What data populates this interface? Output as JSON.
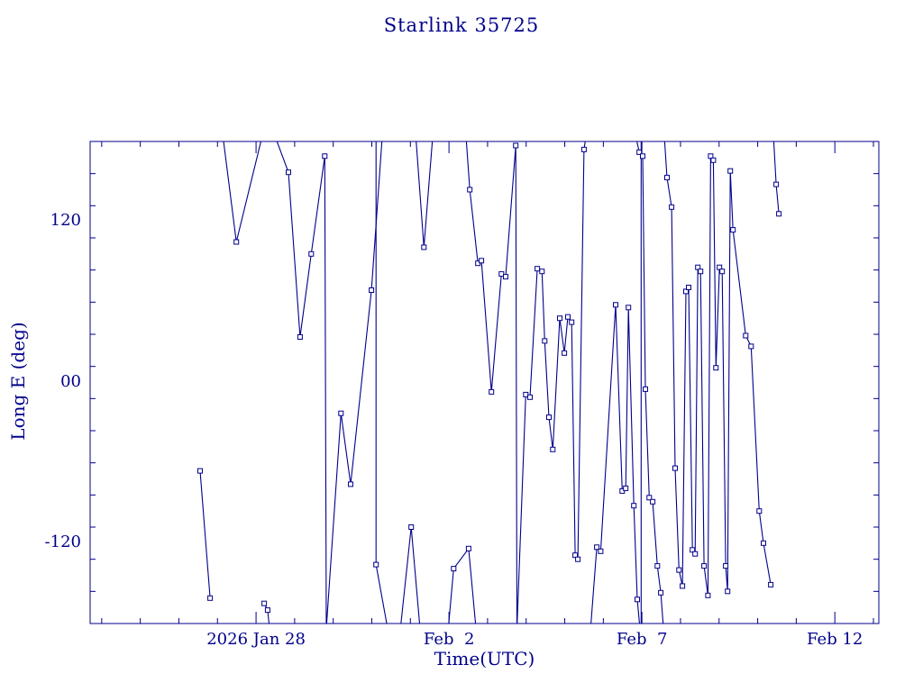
{
  "title": "Starlink 35725",
  "colors": {
    "line": "#00008B",
    "text": "#00008B",
    "background": "#FFFFFF"
  },
  "chart_data": {
    "type": "line",
    "title": "Starlink 35725",
    "xlabel": "Time(UTC)",
    "ylabel": "Long E (deg)",
    "x_unit": "days since 2026 Jan 28 00:00 UTC",
    "xlim": [
      -4.3,
      16.14
    ],
    "ylim": [
      -180,
      180
    ],
    "grid": false,
    "legend": null,
    "marker": "open-square",
    "x_ticks": [
      {
        "value": 0,
        "label": "2026 Jan 28"
      },
      {
        "value": 5,
        "label": "Feb  2"
      },
      {
        "value": 10,
        "label": "Feb  7"
      },
      {
        "value": 15,
        "label": "Feb 12"
      }
    ],
    "x_minor_step_days": 1,
    "y_ticks": [
      {
        "value": 120,
        "label": "120"
      },
      {
        "value": 0,
        "label": "00"
      },
      {
        "value": -120,
        "label": "-120"
      }
    ],
    "y_minor_step": 24,
    "segments": [
      [
        [
          -1.45,
          -66
        ],
        [
          -1.19,
          -161
        ]
      ],
      [
        [
          -0.86,
          184
        ],
        [
          -0.51,
          105
        ],
        [
          0.16,
          184
        ]
      ],
      [
        [
          0.21,
          -165
        ],
        [
          0.3,
          -170
        ],
        [
          0.35,
          -184
        ]
      ],
      [
        [
          0.49,
          184
        ],
        [
          0.84,
          157
        ],
        [
          1.14,
          34
        ],
        [
          1.43,
          96
        ],
        [
          1.78,
          169
        ],
        [
          1.82,
          -184
        ],
        [
          2.2,
          -23
        ],
        [
          2.45,
          -76
        ],
        [
          2.99,
          69
        ],
        [
          3.27,
          184
        ]
      ],
      [
        [
          3.11,
          184
        ],
        [
          3.11,
          -136
        ],
        [
          3.41,
          -184
        ]
      ],
      [
        [
          3.74,
          -184
        ],
        [
          4.02,
          -108
        ],
        [
          4.25,
          -184
        ]
      ],
      [
        [
          4.14,
          184
        ],
        [
          4.35,
          101
        ],
        [
          4.58,
          184
        ]
      ],
      [
        [
          4.98,
          -184
        ],
        [
          5.12,
          -139
        ],
        [
          5.51,
          -124
        ],
        [
          5.7,
          -184
        ]
      ],
      [
        [
          5.44,
          184
        ],
        [
          5.54,
          144
        ],
        [
          5.75,
          89
        ],
        [
          5.84,
          91
        ],
        [
          6.1,
          -7
        ],
        [
          6.36,
          81
        ],
        [
          6.47,
          79
        ],
        [
          6.73,
          177
        ],
        [
          6.76,
          -184
        ],
        [
          6.99,
          -9
        ],
        [
          7.1,
          -11
        ],
        [
          7.29,
          85
        ],
        [
          7.41,
          83
        ],
        [
          7.48,
          31
        ],
        [
          7.59,
          -26
        ],
        [
          7.69,
          -50
        ],
        [
          7.87,
          48
        ],
        [
          7.99,
          22
        ],
        [
          8.08,
          49
        ],
        [
          8.18,
          45
        ],
        [
          8.27,
          -129
        ],
        [
          8.34,
          -132
        ],
        [
          8.5,
          174
        ],
        [
          8.55,
          184
        ]
      ],
      [
        [
          8.67,
          -184
        ],
        [
          8.83,
          -123
        ],
        [
          8.93,
          -126
        ],
        [
          9.32,
          58
        ],
        [
          9.49,
          -81
        ],
        [
          9.58,
          -79
        ],
        [
          9.65,
          56
        ],
        [
          9.79,
          -92
        ],
        [
          9.88,
          -162
        ],
        [
          9.95,
          -184
        ]
      ],
      [
        [
          9.98,
          184
        ],
        [
          9.98,
          -184
        ]
      ],
      [
        [
          9.84,
          184
        ],
        [
          9.93,
          172
        ],
        [
          10.02,
          169
        ],
        [
          10.09,
          -5
        ],
        [
          10.19,
          -86
        ],
        [
          10.28,
          -89
        ],
        [
          10.4,
          -137
        ],
        [
          10.49,
          -157
        ],
        [
          10.56,
          -184
        ]
      ],
      [
        [
          10.58,
          184
        ],
        [
          10.65,
          153
        ],
        [
          10.77,
          131
        ],
        [
          10.86,
          -64
        ],
        [
          10.96,
          -140
        ],
        [
          11.05,
          -152
        ],
        [
          11.14,
          68
        ],
        [
          11.21,
          71
        ],
        [
          11.31,
          -125
        ],
        [
          11.38,
          -128
        ],
        [
          11.45,
          86
        ],
        [
          11.52,
          83
        ],
        [
          11.61,
          -137
        ],
        [
          11.71,
          -159
        ],
        [
          11.78,
          169
        ],
        [
          11.85,
          166
        ],
        [
          11.92,
          11
        ],
        [
          12.01,
          86
        ],
        [
          12.08,
          83
        ],
        [
          12.17,
          -137
        ],
        [
          12.22,
          -156
        ],
        [
          12.29,
          158
        ],
        [
          12.36,
          114
        ],
        [
          12.69,
          35
        ],
        [
          12.83,
          27
        ],
        [
          13.04,
          -96
        ],
        [
          13.15,
          -120
        ],
        [
          13.34,
          -151
        ]
      ],
      [
        [
          13.41,
          184
        ],
        [
          13.48,
          148
        ],
        [
          13.55,
          126
        ]
      ]
    ]
  }
}
